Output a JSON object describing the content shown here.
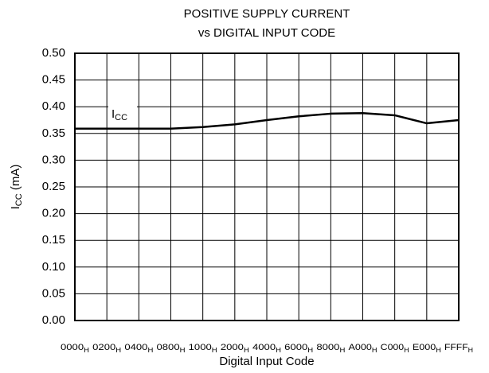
{
  "chart_data": {
    "type": "line",
    "title": [
      "POSITIVE SUPPLY CURRENT",
      "vs DIGITAL INPUT CODE"
    ],
    "xlabel": "Digital Input Code",
    "ylabel": {
      "main": "I",
      "sub": "CC",
      "rest": " (mA)"
    },
    "x_subscript": "H",
    "categories": [
      "0000",
      "0200",
      "0400",
      "0800",
      "1000",
      "2000",
      "4000",
      "6000",
      "8000",
      "A000",
      "C000",
      "E000",
      "FFFF"
    ],
    "series": [
      {
        "name": {
          "main": "I",
          "sub": "CC"
        },
        "color": "#000000",
        "values": [
          0.359,
          0.359,
          0.359,
          0.359,
          0.362,
          0.367,
          0.375,
          0.382,
          0.387,
          0.388,
          0.384,
          0.369,
          0.375
        ]
      }
    ],
    "ylim": [
      0,
      0.5
    ],
    "yticks": [
      {
        "value": 0,
        "label": "0.00"
      },
      0.05,
      {
        "value": 0.1,
        "label": "0.10"
      },
      0.15,
      {
        "value": 0.2,
        "label": "0.20"
      },
      0.25,
      {
        "value": 0.3,
        "label": "0.30"
      },
      0.35,
      {
        "value": 0.4,
        "label": "0.40"
      },
      0.45,
      {
        "value": 0.5,
        "label": "0.50"
      }
    ],
    "grid": true
  }
}
